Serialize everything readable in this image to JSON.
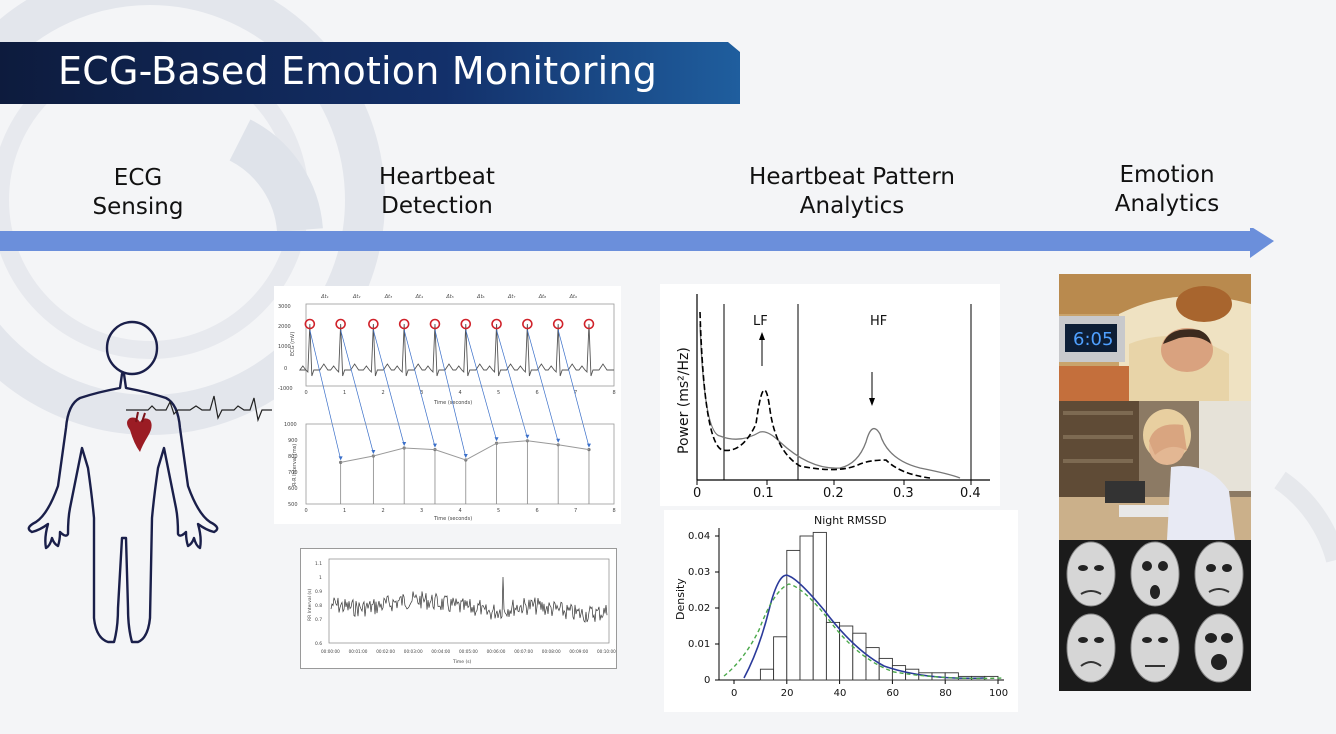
{
  "title": "ECG-Based Emotion Monitoring",
  "steps": {
    "s1": {
      "line1": "ECG",
      "line2": "Sensing"
    },
    "s2": {
      "line1": "Heartbeat",
      "line2": "Detection"
    },
    "s3": {
      "line1": "Heartbeat Pattern",
      "line2": "Analytics"
    },
    "s4": {
      "line1": "Emotion",
      "line2": "Analytics"
    }
  },
  "ecg_chart": {
    "ylabel": "ECG (mV)",
    "xlabel": "Time (seconds)",
    "yticks": [
      "3000",
      "2000",
      "1000",
      "0",
      "-1000"
    ],
    "xticks": [
      "0",
      "1",
      "2",
      "3",
      "4",
      "5",
      "6",
      "7",
      "8"
    ],
    "beat_labels": [
      "Δt₁",
      "Δt₂",
      "Δt₃",
      "Δt₄",
      "Δt₅",
      "Δt₆",
      "Δt₇",
      "Δt₈",
      "Δt₉"
    ]
  },
  "rr_chart": {
    "ylabel": "R-R Interval (ms)",
    "xlabel": "Time (seconds)",
    "yticks": [
      "1000",
      "900",
      "800",
      "700",
      "600",
      "500"
    ],
    "xticks": [
      "0",
      "1",
      "2",
      "3",
      "4",
      "5",
      "6",
      "7",
      "8"
    ]
  },
  "rr_series_chart": {
    "ylabel": "RR Interval (s)",
    "xlabel": "Time (s)",
    "yticks": [
      "1.1",
      "1",
      "0.9",
      "0.8",
      "0.7",
      "0.6"
    ],
    "xticks": [
      "00:00:00",
      "00:01:00",
      "00:02:00",
      "00:03:00",
      "00:04:00",
      "00:05:00",
      "00:06:00",
      "00:07:00",
      "00:08:00",
      "00:09:00",
      "00:10:00"
    ]
  },
  "psd_chart": {
    "ylabel": "Power (ms²/Hz)",
    "lf_label": "LF",
    "hf_label": "HF",
    "xticks": [
      "0",
      "0.1",
      "0.2",
      "0.3",
      "0.4"
    ]
  },
  "chart_data": [
    {
      "type": "line",
      "title": "",
      "ylabel": "R-R Interval (ms)",
      "xlabel": "Time (seconds)",
      "ylim": [
        500,
        1000
      ],
      "xlim": [
        0,
        8
      ],
      "x": [
        0.9,
        1.75,
        2.55,
        3.35,
        4.15,
        4.95,
        5.75,
        6.55,
        7.35
      ],
      "series": [
        {
          "values": [
            760,
            800,
            850,
            840,
            775,
            880,
            895,
            870,
            840
          ]
        }
      ]
    },
    {
      "type": "bar",
      "title": "Night RMSSD",
      "ylabel": "Density",
      "xlabel": "",
      "xlim": [
        0,
        100
      ],
      "ylim": [
        0,
        0.04
      ],
      "bin_edges": [
        10,
        15,
        20,
        25,
        30,
        35,
        40,
        45,
        50,
        55,
        60,
        65,
        70,
        75,
        80,
        85,
        90,
        95,
        100
      ],
      "values": [
        0.003,
        0.012,
        0.036,
        0.04,
        0.041,
        0.016,
        0.015,
        0.013,
        0.009,
        0.006,
        0.004,
        0.003,
        0.002,
        0.002,
        0.002,
        0.001,
        0.001,
        0.001
      ],
      "yticks": [
        "0",
        "0.01",
        "0.02",
        "0.03",
        "0.04"
      ],
      "xticks": [
        "0",
        "20",
        "40",
        "60",
        "80",
        "100"
      ]
    }
  ],
  "colors": {
    "arrow": "#6b8fdb",
    "title_dark": "#0d1b3d",
    "title_light": "#1f5e9e",
    "marker": "#d0222a",
    "blue_fit": "#2b3a9a",
    "green_fit": "#4aa84a"
  },
  "photos": {
    "clock": "6:05"
  }
}
